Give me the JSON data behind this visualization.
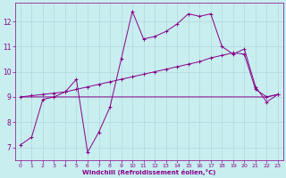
{
  "xlabel": "Windchill (Refroidissement éolien,°C)",
  "background_color": "#c8eef0",
  "grid_color": "#b0d8dc",
  "line_color": "#880088",
  "xlim": [
    -0.5,
    23.5
  ],
  "ylim": [
    6.5,
    12.75
  ],
  "xticks": [
    0,
    1,
    2,
    3,
    4,
    5,
    6,
    7,
    8,
    9,
    10,
    11,
    12,
    13,
    14,
    15,
    16,
    17,
    18,
    19,
    20,
    21,
    22,
    23
  ],
  "yticks": [
    7,
    8,
    9,
    10,
    11,
    12
  ],
  "series1_x": [
    0,
    1,
    2,
    3,
    4,
    5,
    6,
    7,
    8,
    9,
    10,
    11,
    12,
    13,
    14,
    15,
    16,
    17,
    18,
    19,
    20,
    21,
    22,
    23
  ],
  "series1_y": [
    7.1,
    7.4,
    8.9,
    9.0,
    9.2,
    9.7,
    6.8,
    7.6,
    8.6,
    10.5,
    12.4,
    11.3,
    11.4,
    11.6,
    11.9,
    12.3,
    12.2,
    12.3,
    11.0,
    10.7,
    10.9,
    9.4,
    8.8,
    9.1
  ],
  "series2_x": [
    0,
    1,
    2,
    3,
    4,
    5,
    6,
    7,
    8,
    9,
    10,
    11,
    12,
    13,
    14,
    15,
    16,
    17,
    18,
    19,
    20,
    21,
    22,
    23
  ],
  "series2_y": [
    9.0,
    9.05,
    9.1,
    9.15,
    9.2,
    9.3,
    9.4,
    9.5,
    9.6,
    9.7,
    9.8,
    9.9,
    10.0,
    10.1,
    10.2,
    10.3,
    10.4,
    10.55,
    10.65,
    10.75,
    10.7,
    9.3,
    9.0,
    9.1
  ],
  "series3_x": [
    0,
    1,
    2,
    3,
    4,
    5,
    6,
    7,
    8,
    9,
    10,
    11,
    12,
    13,
    14,
    15,
    16,
    17,
    18,
    19,
    20,
    21,
    22,
    23
  ],
  "series3_y": [
    9.0,
    9.0,
    9.0,
    9.0,
    9.0,
    9.0,
    9.0,
    9.0,
    9.0,
    9.0,
    9.0,
    9.0,
    9.0,
    9.0,
    9.0,
    9.0,
    9.0,
    9.0,
    9.0,
    9.0,
    9.0,
    9.0,
    9.0,
    9.1
  ]
}
